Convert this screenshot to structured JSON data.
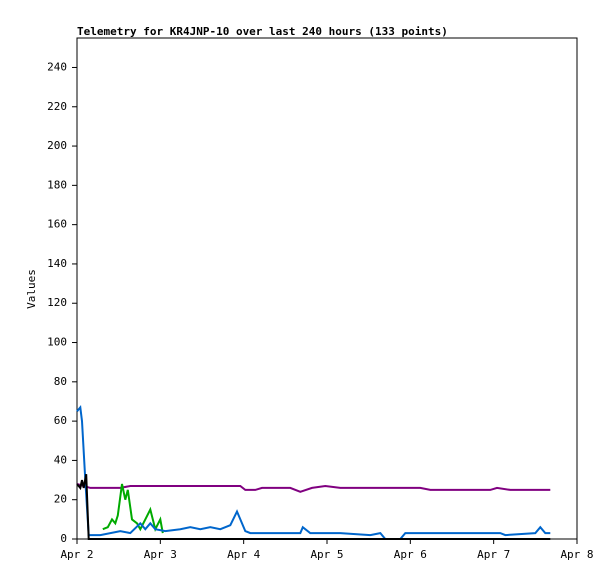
{
  "chart_data": {
    "type": "line",
    "title": "Telemetry for KR4JNP-10 over last 240 hours (133 points)",
    "y_label": "Values",
    "xlim": [
      0,
      6
    ],
    "xticks": [
      {
        "value": 0,
        "label": "Apr 2"
      },
      {
        "value": 1,
        "label": "Apr 3"
      },
      {
        "value": 2,
        "label": "Apr 4"
      },
      {
        "value": 3,
        "label": "Apr 5"
      },
      {
        "value": 4,
        "label": "Apr 6"
      },
      {
        "value": 5,
        "label": "Apr 7"
      },
      {
        "value": 6,
        "label": "Apr 8"
      }
    ],
    "ylim": [
      0,
      255
    ],
    "yticks": [
      0,
      20,
      40,
      60,
      80,
      100,
      120,
      140,
      160,
      180,
      200,
      220,
      240
    ],
    "series": [
      {
        "color": "#800080",
        "x": [
          0,
          0.16,
          0.52,
          0.64,
          1.96,
          2.02,
          2.14,
          2.22,
          2.56,
          2.68,
          2.82,
          2.98,
          3.16,
          3.88,
          4.12,
          4.24,
          4.96,
          5.04,
          5.2,
          5.68
        ],
        "values": [
          28,
          26,
          26,
          27,
          27,
          25,
          25,
          26,
          26,
          24,
          26,
          27,
          26,
          26,
          26,
          25,
          25,
          26,
          25,
          25
        ]
      },
      {
        "color": "#00aa00",
        "x": [
          0.31,
          0.37,
          0.42,
          0.46,
          0.49,
          0.54,
          0.58,
          0.61,
          0.66,
          0.72,
          0.76,
          0.82,
          0.88,
          0.94,
          1.0,
          1.03
        ],
        "values": [
          5,
          6,
          10,
          8,
          12,
          28,
          20,
          25,
          10,
          8,
          5,
          10,
          15,
          5,
          10,
          3
        ]
      },
      {
        "color": "#0066cc",
        "x": [
          0,
          0.04,
          0.06,
          0.1,
          0.14,
          0.28,
          0.52,
          0.64,
          0.76,
          0.82,
          0.88,
          0.94,
          1.06,
          1.24,
          1.36,
          1.48,
          1.6,
          1.72,
          1.84,
          1.92,
          2.02,
          2.08,
          2.68,
          2.71,
          2.8,
          3.16,
          3.52,
          3.64,
          3.7,
          3.88,
          3.94,
          5.08,
          5.14,
          5.5,
          5.56,
          5.62,
          5.68
        ],
        "values": [
          65,
          67,
          60,
          30,
          2,
          2,
          4,
          3,
          8,
          5,
          8,
          5,
          4,
          5,
          6,
          5,
          6,
          5,
          7,
          14,
          4,
          3,
          3,
          6,
          3,
          3,
          2,
          3,
          0,
          0,
          3,
          3,
          2,
          3,
          6,
          3,
          3
        ]
      },
      {
        "color": "#000000",
        "x": [
          0,
          0.04,
          0.06,
          0.08,
          0.11,
          0.14,
          5.68
        ],
        "values": [
          28,
          26,
          30,
          26,
          33,
          0,
          0
        ]
      }
    ]
  }
}
